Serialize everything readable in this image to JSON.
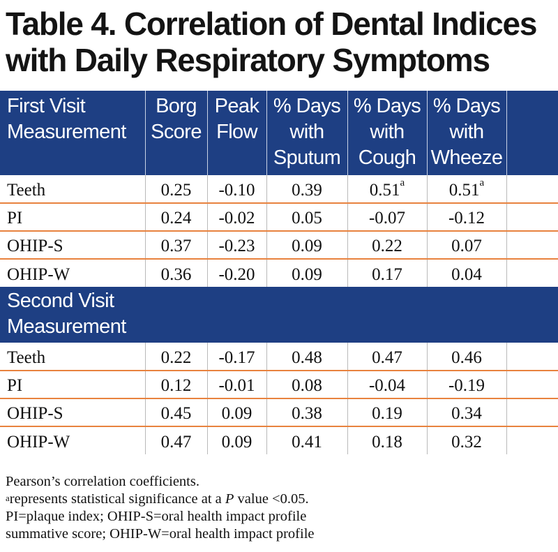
{
  "title": {
    "line1": "Table 4. Correlation of Dental Indices",
    "line2": "with Daily Respiratory Symptoms"
  },
  "header": {
    "col0": [
      "First Visit",
      "Measurement"
    ],
    "col1": [
      "Borg",
      "Score"
    ],
    "col2": [
      "Peak",
      "Flow"
    ],
    "col3": [
      "% Days",
      "with",
      "Sputum"
    ],
    "col4": [
      "% Days",
      "with",
      "Cough"
    ],
    "col5": [
      "% Days",
      "with",
      "Wheeze"
    ]
  },
  "first_visit": {
    "rows": [
      {
        "label": "Teeth",
        "values": [
          "0.25",
          "-0.10",
          "0.39",
          "0.51",
          "0.51"
        ],
        "sup": [
          "",
          "",
          "",
          "a",
          "a"
        ]
      },
      {
        "label": "PI",
        "values": [
          "0.24",
          "-0.02",
          "0.05",
          "-0.07",
          "-0.12"
        ],
        "sup": [
          "",
          "",
          "",
          "",
          ""
        ]
      },
      {
        "label": "OHIP-S",
        "values": [
          "0.37",
          "-0.23",
          "0.09",
          "0.22",
          "0.07"
        ],
        "sup": [
          "",
          "",
          "",
          "",
          ""
        ]
      },
      {
        "label": "OHIP-W",
        "values": [
          "0.36",
          "-0.20",
          "0.09",
          "0.17",
          "0.04"
        ],
        "sup": [
          "",
          "",
          "",
          "",
          ""
        ]
      }
    ]
  },
  "second_visit": {
    "heading": [
      "Second Visit",
      "Measurement"
    ],
    "rows": [
      {
        "label": "Teeth",
        "values": [
          "0.22",
          "-0.17",
          "0.48",
          "0.47",
          "0.46"
        ]
      },
      {
        "label": "PI",
        "values": [
          "0.12",
          "-0.01",
          "0.08",
          "-0.04",
          "-0.19"
        ]
      },
      {
        "label": "OHIP-S",
        "values": [
          "0.45",
          "0.09",
          "0.38",
          "0.19",
          "0.34"
        ]
      },
      {
        "label": "OHIP-W",
        "values": [
          "0.47",
          "0.09",
          "0.41",
          "0.18",
          "0.32"
        ]
      }
    ]
  },
  "notes": {
    "line1": "Pearson’s correlation coefficients.",
    "line2_sup": "a",
    "line2_pre": "represents statistical significance at a ",
    "line2_p": "P",
    "line2_post": " value <0.05.",
    "line3": "PI=plaque index; OHIP-S=oral health impact profile",
    "line4": "summative score; OHIP-W=oral health impact profile"
  },
  "colors": {
    "header_bg": "#1e3f83",
    "row_rule": "#e8823e"
  }
}
